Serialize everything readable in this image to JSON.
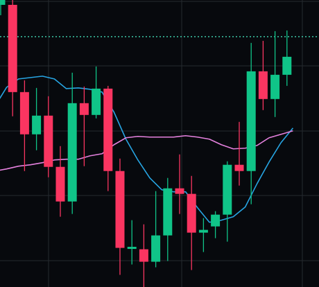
{
  "colors": {
    "background": "#07090d",
    "grid": "#262a30",
    "up": "#10c488",
    "down": "#fa3561",
    "ma_fast": "#27a5e3",
    "ma_slow": "#e581de",
    "price_line": "#3ec7a7"
  },
  "chart_data": {
    "type": "candlestick",
    "grid": true,
    "ylim": [
      -17.5,
      397.0
    ],
    "x": [
      0,
      1,
      2,
      3,
      4,
      5,
      6,
      7,
      8,
      9,
      10,
      11,
      12,
      13,
      14,
      15,
      16,
      17,
      18,
      19,
      20,
      21,
      22,
      23,
      24
    ],
    "candles": [
      {
        "open": 390.0,
        "close": 397.0,
        "high": 397.0,
        "low": 375.0
      },
      {
        "open": 390.0,
        "close": 264.0,
        "high": 397.0,
        "low": 229.0
      },
      {
        "open": 264.0,
        "close": 203.0,
        "high": 281.0,
        "low": 150.0
      },
      {
        "open": 203.0,
        "close": 230.0,
        "high": 270.0,
        "low": 180.0
      },
      {
        "open": 230.0,
        "close": 156.0,
        "high": 258.0,
        "low": 141.0
      },
      {
        "open": 156.0,
        "close": 106.0,
        "high": 186.0,
        "low": 84.0
      },
      {
        "open": 106.0,
        "close": 248.0,
        "high": 292.0,
        "low": 88.0
      },
      {
        "open": 248.0,
        "close": 231.0,
        "high": 272.0,
        "low": 157.0
      },
      {
        "open": 231.0,
        "close": 269.0,
        "high": 301.0,
        "low": 226.0
      },
      {
        "open": 269.0,
        "close": 150.0,
        "high": 273.0,
        "low": 121.0
      },
      {
        "open": 150.0,
        "close": 39.0,
        "high": 168.0,
        "low": 0.0
      },
      {
        "open": 39.0,
        "close": 39.0,
        "high": 79.0,
        "low": 15.0
      },
      {
        "open": 37.0,
        "close": 19.0,
        "high": 73.0,
        "low": -17.5
      },
      {
        "open": 19.0,
        "close": 57.0,
        "high": 121.0,
        "low": 11.0
      },
      {
        "open": 57.0,
        "close": 125.0,
        "high": 140.0,
        "low": 20.0
      },
      {
        "open": 125.0,
        "close": 117.0,
        "high": 174.0,
        "low": 88.0
      },
      {
        "open": 117.0,
        "close": 61.0,
        "high": 143.0,
        "low": 7.0
      },
      {
        "open": 61.0,
        "close": 65.0,
        "high": 82.0,
        "low": 33.0
      },
      {
        "open": 70.0,
        "close": 87.0,
        "high": 92.0,
        "low": 53.0
      },
      {
        "open": 87.0,
        "close": 159.0,
        "high": 164.0,
        "low": 48.0
      },
      {
        "open": 159.0,
        "close": 150.0,
        "high": 221.0,
        "low": 129.0
      },
      {
        "open": 150.0,
        "close": 294.0,
        "high": 335.0,
        "low": 102.0
      },
      {
        "open": 294.0,
        "close": 254.0,
        "high": 338.0,
        "low": 238.0
      },
      {
        "open": 254.0,
        "close": 289.0,
        "high": 352.0,
        "low": 228.0
      },
      {
        "open": 289.0,
        "close": 315.0,
        "high": 353.0,
        "low": 273.0
      }
    ],
    "series": [
      {
        "color_key": "ma_fast",
        "x": [
          -0.5,
          0.5,
          1.5,
          2.5,
          3.5,
          4.5,
          5.5,
          6.5,
          7.5,
          8.5,
          9.5,
          10.5,
          11.5,
          12.5,
          13.5,
          14.5,
          15.5,
          16.5,
          17.5,
          18.5,
          19.5,
          20.5,
          21.5,
          22.5,
          23.5,
          24.5
        ],
        "values": [
          243.0,
          271.0,
          283.0,
          285.0,
          287.0,
          283.0,
          269.0,
          270.0,
          268.0,
          264.0,
          235.0,
          196.0,
          166.0,
          140.0,
          123.0,
          120.0,
          120.0,
          97.0,
          76.0,
          79.0,
          84.0,
          98.0,
          132.0,
          163.0,
          191.0,
          212.0
        ]
      },
      {
        "color_key": "ma_slow",
        "x": [
          -0.5,
          0.5,
          1.5,
          2.5,
          3.5,
          4.5,
          5.5,
          6.5,
          7.5,
          8.5,
          9.5,
          10.5,
          11.5,
          12.5,
          13.5,
          14.5,
          15.5,
          16.5,
          17.5,
          18.5,
          19.5,
          20.5,
          21.5,
          22.5,
          23.5,
          24.5
        ],
        "values": [
          150.0,
          153.0,
          157.0,
          159.0,
          162.0,
          166.0,
          167.0,
          167.0,
          172.0,
          175.0,
          188.0,
          198.0,
          200.0,
          199.0,
          199.0,
          199.0,
          201.0,
          199.0,
          196.0,
          188.0,
          182.0,
          183.0,
          187.0,
          198.0,
          203.0,
          208.0
        ]
      }
    ],
    "reference_line": {
      "value": 344.0,
      "color_key": "price_line",
      "dashed": true
    }
  }
}
